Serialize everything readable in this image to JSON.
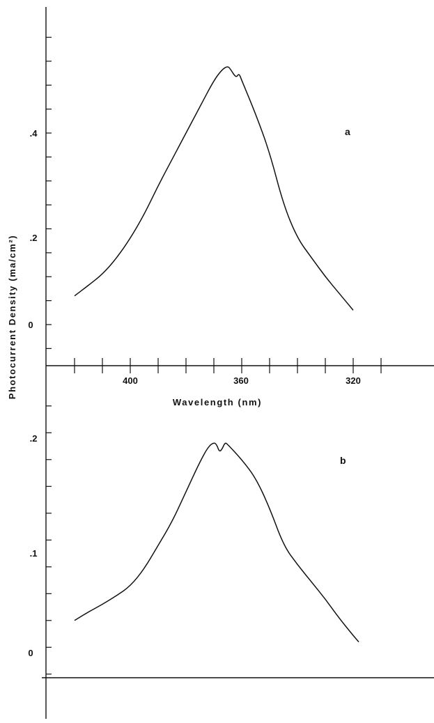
{
  "chart_data": [
    {
      "type": "line",
      "panel_label": "a",
      "xlabel": "Wavelength (nm)",
      "ylabel": "Photocurrent Density (ma/cm²)",
      "x_ticks": [
        "400",
        "360",
        "320"
      ],
      "y_ticks": [
        ".4",
        ".2",
        "0"
      ],
      "xlim": [
        420,
        300
      ],
      "ylim": [
        -0.1,
        0.6
      ],
      "series": [
        {
          "x": [
            420,
            415,
            410,
            405,
            400,
            395,
            390,
            385,
            380,
            375,
            370,
            367,
            365,
            364,
            362,
            361,
            360,
            355,
            350,
            345,
            340,
            335,
            330,
            325,
            320
          ],
          "y": [
            0.06,
            0.082,
            0.105,
            0.138,
            0.18,
            0.23,
            0.29,
            0.345,
            0.4,
            0.455,
            0.51,
            0.533,
            0.54,
            0.533,
            0.515,
            0.525,
            0.51,
            0.44,
            0.36,
            0.25,
            0.18,
            0.14,
            0.1,
            0.065,
            0.03
          ]
        }
      ]
    },
    {
      "type": "line",
      "panel_label": "b",
      "xlabel": "Wavelength (nm)",
      "ylabel": "Photocurrent Density (ma/cm²)",
      "y_ticks": [
        ".2",
        ".1",
        "0"
      ],
      "xlim": [
        420,
        300
      ],
      "ylim": [
        -0.02,
        0.26
      ],
      "series": [
        {
          "x": [
            420,
            415,
            410,
            405,
            400,
            395,
            390,
            385,
            380,
            375,
            372,
            370,
            369,
            368,
            367,
            366,
            365,
            360,
            355,
            350,
            345,
            340,
            335,
            330,
            325,
            320,
            318
          ],
          "y": [
            0.03,
            0.038,
            0.045,
            0.053,
            0.062,
            0.078,
            0.1,
            0.122,
            0.15,
            0.178,
            0.192,
            0.196,
            0.194,
            0.187,
            0.19,
            0.196,
            0.194,
            0.18,
            0.163,
            0.135,
            0.1,
            0.082,
            0.066,
            0.05,
            0.032,
            0.016,
            0.01
          ]
        }
      ]
    }
  ]
}
